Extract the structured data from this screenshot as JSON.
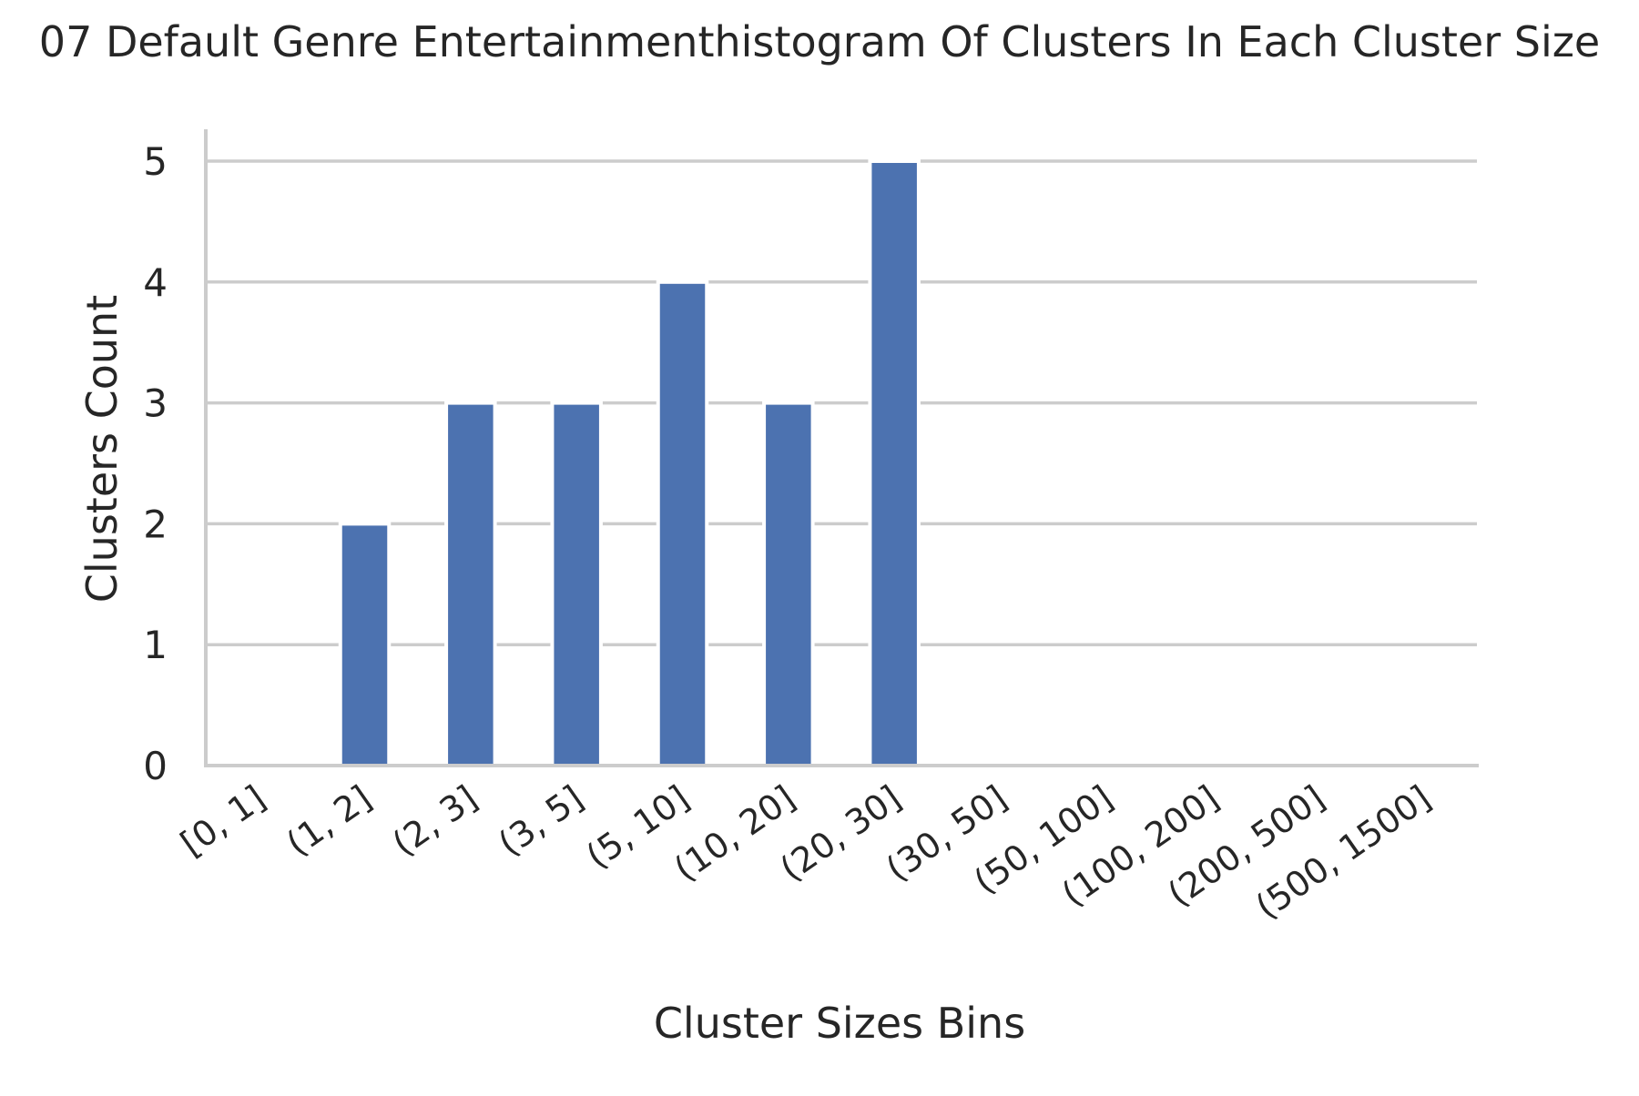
{
  "chart_data": {
    "type": "bar",
    "title": "07 Default Genre Entertainmenthistogram Of Clusters In Each Cluster Size",
    "xlabel": "Cluster Sizes Bins",
    "ylabel": "Clusters Count",
    "categories": [
      "[0, 1]",
      "(1, 2]",
      "(2, 3]",
      "(3, 5]",
      "(5, 10]",
      "(10, 20]",
      "(20, 30]",
      "(30, 50]",
      "(50, 100]",
      "(100, 200]",
      "(200, 500]",
      "(500, 1500]"
    ],
    "values": [
      0,
      2,
      3,
      3,
      4,
      3,
      5,
      0,
      0,
      0,
      0,
      0
    ],
    "yticks": [
      "0",
      "1",
      "2",
      "3",
      "4",
      "5"
    ],
    "ylim": [
      0,
      5.25
    ],
    "grid": "horizontal",
    "legend": "none",
    "bar_color": "#4c72b0",
    "grid_color": "#cccccc",
    "axis_color": "#cccccc"
  }
}
